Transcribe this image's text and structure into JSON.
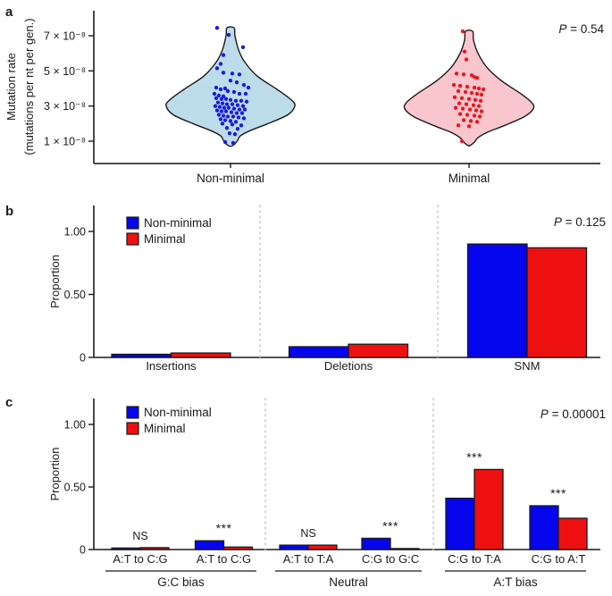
{
  "chart_data": [
    {
      "type": "violin",
      "panel_letter": "a",
      "p_value": "P = 0.54",
      "ylabel_lines": [
        "Mutation rate",
        "(mutations per nt per gen.)"
      ],
      "ylim": [
        0,
        8
      ],
      "yticks": [
        {
          "value": 1,
          "label": "1 × 10⁻⁸"
        },
        {
          "value": 3,
          "label": "3 × 10⁻⁸"
        },
        {
          "value": 5,
          "label": "5 × 10⁻⁸"
        },
        {
          "value": 7,
          "label": "7 × 10⁻⁸"
        }
      ],
      "groups": [
        {
          "label": "Non-minimal",
          "fill": "#bddcea",
          "point_color": "#1c1cdb",
          "violin_profile": [
            [
              7.45,
              4
            ],
            [
              7.0,
              5
            ],
            [
              6.2,
              9
            ],
            [
              5.5,
              16
            ],
            [
              4.7,
              30
            ],
            [
              3.95,
              52
            ],
            [
              3.35,
              68
            ],
            [
              3.0,
              72
            ],
            [
              2.5,
              64
            ],
            [
              2.0,
              42
            ],
            [
              1.6,
              22
            ],
            [
              1.3,
              11
            ],
            [
              1.05,
              8
            ],
            [
              0.8,
              4
            ],
            [
              0.72,
              1
            ]
          ],
          "points": [
            [
              -15,
              7.45
            ],
            [
              -2,
              7.05
            ],
            [
              14,
              6.35
            ],
            [
              -8,
              5.9
            ],
            [
              -11,
              5.4
            ],
            [
              -15,
              5.15
            ],
            [
              -8,
              4.9
            ],
            [
              2,
              4.85
            ],
            [
              10,
              4.8
            ],
            [
              0,
              4.45
            ],
            [
              7,
              4.35
            ],
            [
              15,
              4.2
            ],
            [
              20,
              4.05
            ],
            [
              -16,
              4.05
            ],
            [
              -6,
              4.0
            ],
            [
              -11,
              3.95
            ],
            [
              -3,
              3.85
            ],
            [
              4,
              3.8
            ],
            [
              10,
              3.7
            ],
            [
              17,
              3.7
            ],
            [
              -18,
              3.7
            ],
            [
              -13,
              3.6
            ],
            [
              -8,
              3.55
            ],
            [
              -16,
              3.45
            ],
            [
              -10,
              3.4
            ],
            [
              -5,
              3.4
            ],
            [
              0,
              3.35
            ],
            [
              6,
              3.3
            ],
            [
              12,
              3.3
            ],
            [
              18,
              3.25
            ],
            [
              -14,
              3.2
            ],
            [
              -9,
              3.15
            ],
            [
              -4,
              3.1
            ],
            [
              2,
              3.1
            ],
            [
              8,
              3.05
            ],
            [
              14,
              3.0
            ],
            [
              -17,
              3.0
            ],
            [
              -12,
              2.95
            ],
            [
              -7,
              2.9
            ],
            [
              -2,
              2.9
            ],
            [
              4,
              2.85
            ],
            [
              10,
              2.8
            ],
            [
              16,
              2.8
            ],
            [
              -15,
              2.75
            ],
            [
              -10,
              2.7
            ],
            [
              -5,
              2.7
            ],
            [
              1,
              2.65
            ],
            [
              7,
              2.6
            ],
            [
              13,
              2.6
            ],
            [
              -13,
              2.5
            ],
            [
              -8,
              2.45
            ],
            [
              -3,
              2.4
            ],
            [
              3,
              2.4
            ],
            [
              9,
              2.35
            ],
            [
              15,
              2.3
            ],
            [
              -11,
              2.25
            ],
            [
              -6,
              2.2
            ],
            [
              0,
              2.15
            ],
            [
              6,
              2.1
            ],
            [
              -9,
              2.0
            ],
            [
              2,
              1.95
            ],
            [
              12,
              1.9
            ],
            [
              -4,
              1.75
            ],
            [
              8,
              1.7
            ],
            [
              -1,
              1.45
            ],
            [
              5,
              1.4
            ],
            [
              -6,
              0.95
            ],
            [
              3,
              0.9
            ]
          ]
        },
        {
          "label": "Minimal",
          "fill": "#f9c6ce",
          "point_color": "#e8191d",
          "violin_profile": [
            [
              7.25,
              4
            ],
            [
              6.75,
              5
            ],
            [
              6.0,
              10
            ],
            [
              5.2,
              20
            ],
            [
              4.45,
              36
            ],
            [
              3.7,
              58
            ],
            [
              3.2,
              70
            ],
            [
              2.85,
              72
            ],
            [
              2.4,
              62
            ],
            [
              1.9,
              40
            ],
            [
              1.5,
              20
            ],
            [
              1.2,
              10
            ],
            [
              0.95,
              6
            ],
            [
              0.75,
              1
            ]
          ],
          "points": [
            [
              -7,
              7.25
            ],
            [
              -5,
              6.1
            ],
            [
              -3,
              5.65
            ],
            [
              -14,
              4.85
            ],
            [
              -6,
              4.8
            ],
            [
              3,
              4.75
            ],
            [
              6,
              4.65
            ],
            [
              9,
              4.6
            ],
            [
              -17,
              4.2
            ],
            [
              -10,
              4.15
            ],
            [
              -2,
              4.1
            ],
            [
              6,
              4.05
            ],
            [
              11,
              4.0
            ],
            [
              16,
              3.95
            ],
            [
              -12,
              3.85
            ],
            [
              -4,
              3.8
            ],
            [
              3,
              3.75
            ],
            [
              9,
              3.7
            ],
            [
              14,
              3.65
            ],
            [
              -16,
              3.5
            ],
            [
              -8,
              3.45
            ],
            [
              0,
              3.4
            ],
            [
              7,
              3.35
            ],
            [
              13,
              3.3
            ],
            [
              -11,
              3.15
            ],
            [
              -3,
              3.1
            ],
            [
              5,
              3.05
            ],
            [
              11,
              3.0
            ],
            [
              -15,
              2.9
            ],
            [
              -7,
              2.85
            ],
            [
              1,
              2.8
            ],
            [
              8,
              2.75
            ],
            [
              14,
              2.7
            ],
            [
              -10,
              2.55
            ],
            [
              -2,
              2.5
            ],
            [
              6,
              2.45
            ],
            [
              12,
              2.4
            ],
            [
              -6,
              2.2
            ],
            [
              2,
              2.15
            ],
            [
              9,
              2.1
            ],
            [
              -12,
              1.9
            ],
            [
              0,
              1.85
            ],
            [
              -8,
              1.0
            ]
          ]
        }
      ]
    },
    {
      "type": "bar",
      "panel_letter": "b",
      "p_value": "P = 0.125",
      "ylabel": "Proportion",
      "ylim": [
        0,
        1.2
      ],
      "yticks": [
        {
          "value": 0,
          "label": "0"
        },
        {
          "value": 0.5,
          "label": "0.50"
        },
        {
          "value": 1,
          "label": "1.00"
        }
      ],
      "legend": [
        {
          "label": "Non-minimal",
          "color": "#0505ee"
        },
        {
          "label": "Minimal",
          "color": "#ee1010"
        }
      ],
      "categories": [
        "Insertions",
        "Deletions",
        "SNM"
      ],
      "series": [
        {
          "name": "Non-minimal",
          "color": "#0505ee",
          "values": [
            0.025,
            0.085,
            0.9
          ]
        },
        {
          "name": "Minimal",
          "color": "#ee1010",
          "values": [
            0.035,
            0.105,
            0.87
          ]
        }
      ]
    },
    {
      "type": "bar",
      "panel_letter": "c",
      "p_value": "P = 0.00001",
      "ylabel": "Proportion",
      "ylim": [
        0,
        1.2
      ],
      "yticks": [
        {
          "value": 0,
          "label": "0"
        },
        {
          "value": 0.5,
          "label": "0.50"
        },
        {
          "value": 1,
          "label": "1.00"
        }
      ],
      "legend": [
        {
          "label": "Non-minimal",
          "color": "#0505ee"
        },
        {
          "label": "Minimal",
          "color": "#ee1010"
        }
      ],
      "categories": [
        "A:T to C:G",
        "A:T to C:G",
        "A:T to T:A",
        "C:G to G:C",
        "C:G to T:A",
        "C:G to A:T"
      ],
      "series": [
        {
          "name": "Non-minimal",
          "color": "#0505ee",
          "values": [
            0.012,
            0.07,
            0.035,
            0.09,
            0.41,
            0.35
          ]
        },
        {
          "name": "Minimal",
          "color": "#ee1010",
          "values": [
            0.015,
            0.02,
            0.035,
            0.008,
            0.64,
            0.25
          ]
        }
      ],
      "significance": [
        "NS",
        "***",
        "NS",
        "***",
        "***",
        "***"
      ],
      "group_labels": [
        {
          "label": "G:C bias",
          "categories": [
            0,
            1
          ]
        },
        {
          "label": "Neutral",
          "categories": [
            2,
            3
          ]
        },
        {
          "label": "A:T bias",
          "categories": [
            4,
            5
          ]
        }
      ]
    }
  ]
}
